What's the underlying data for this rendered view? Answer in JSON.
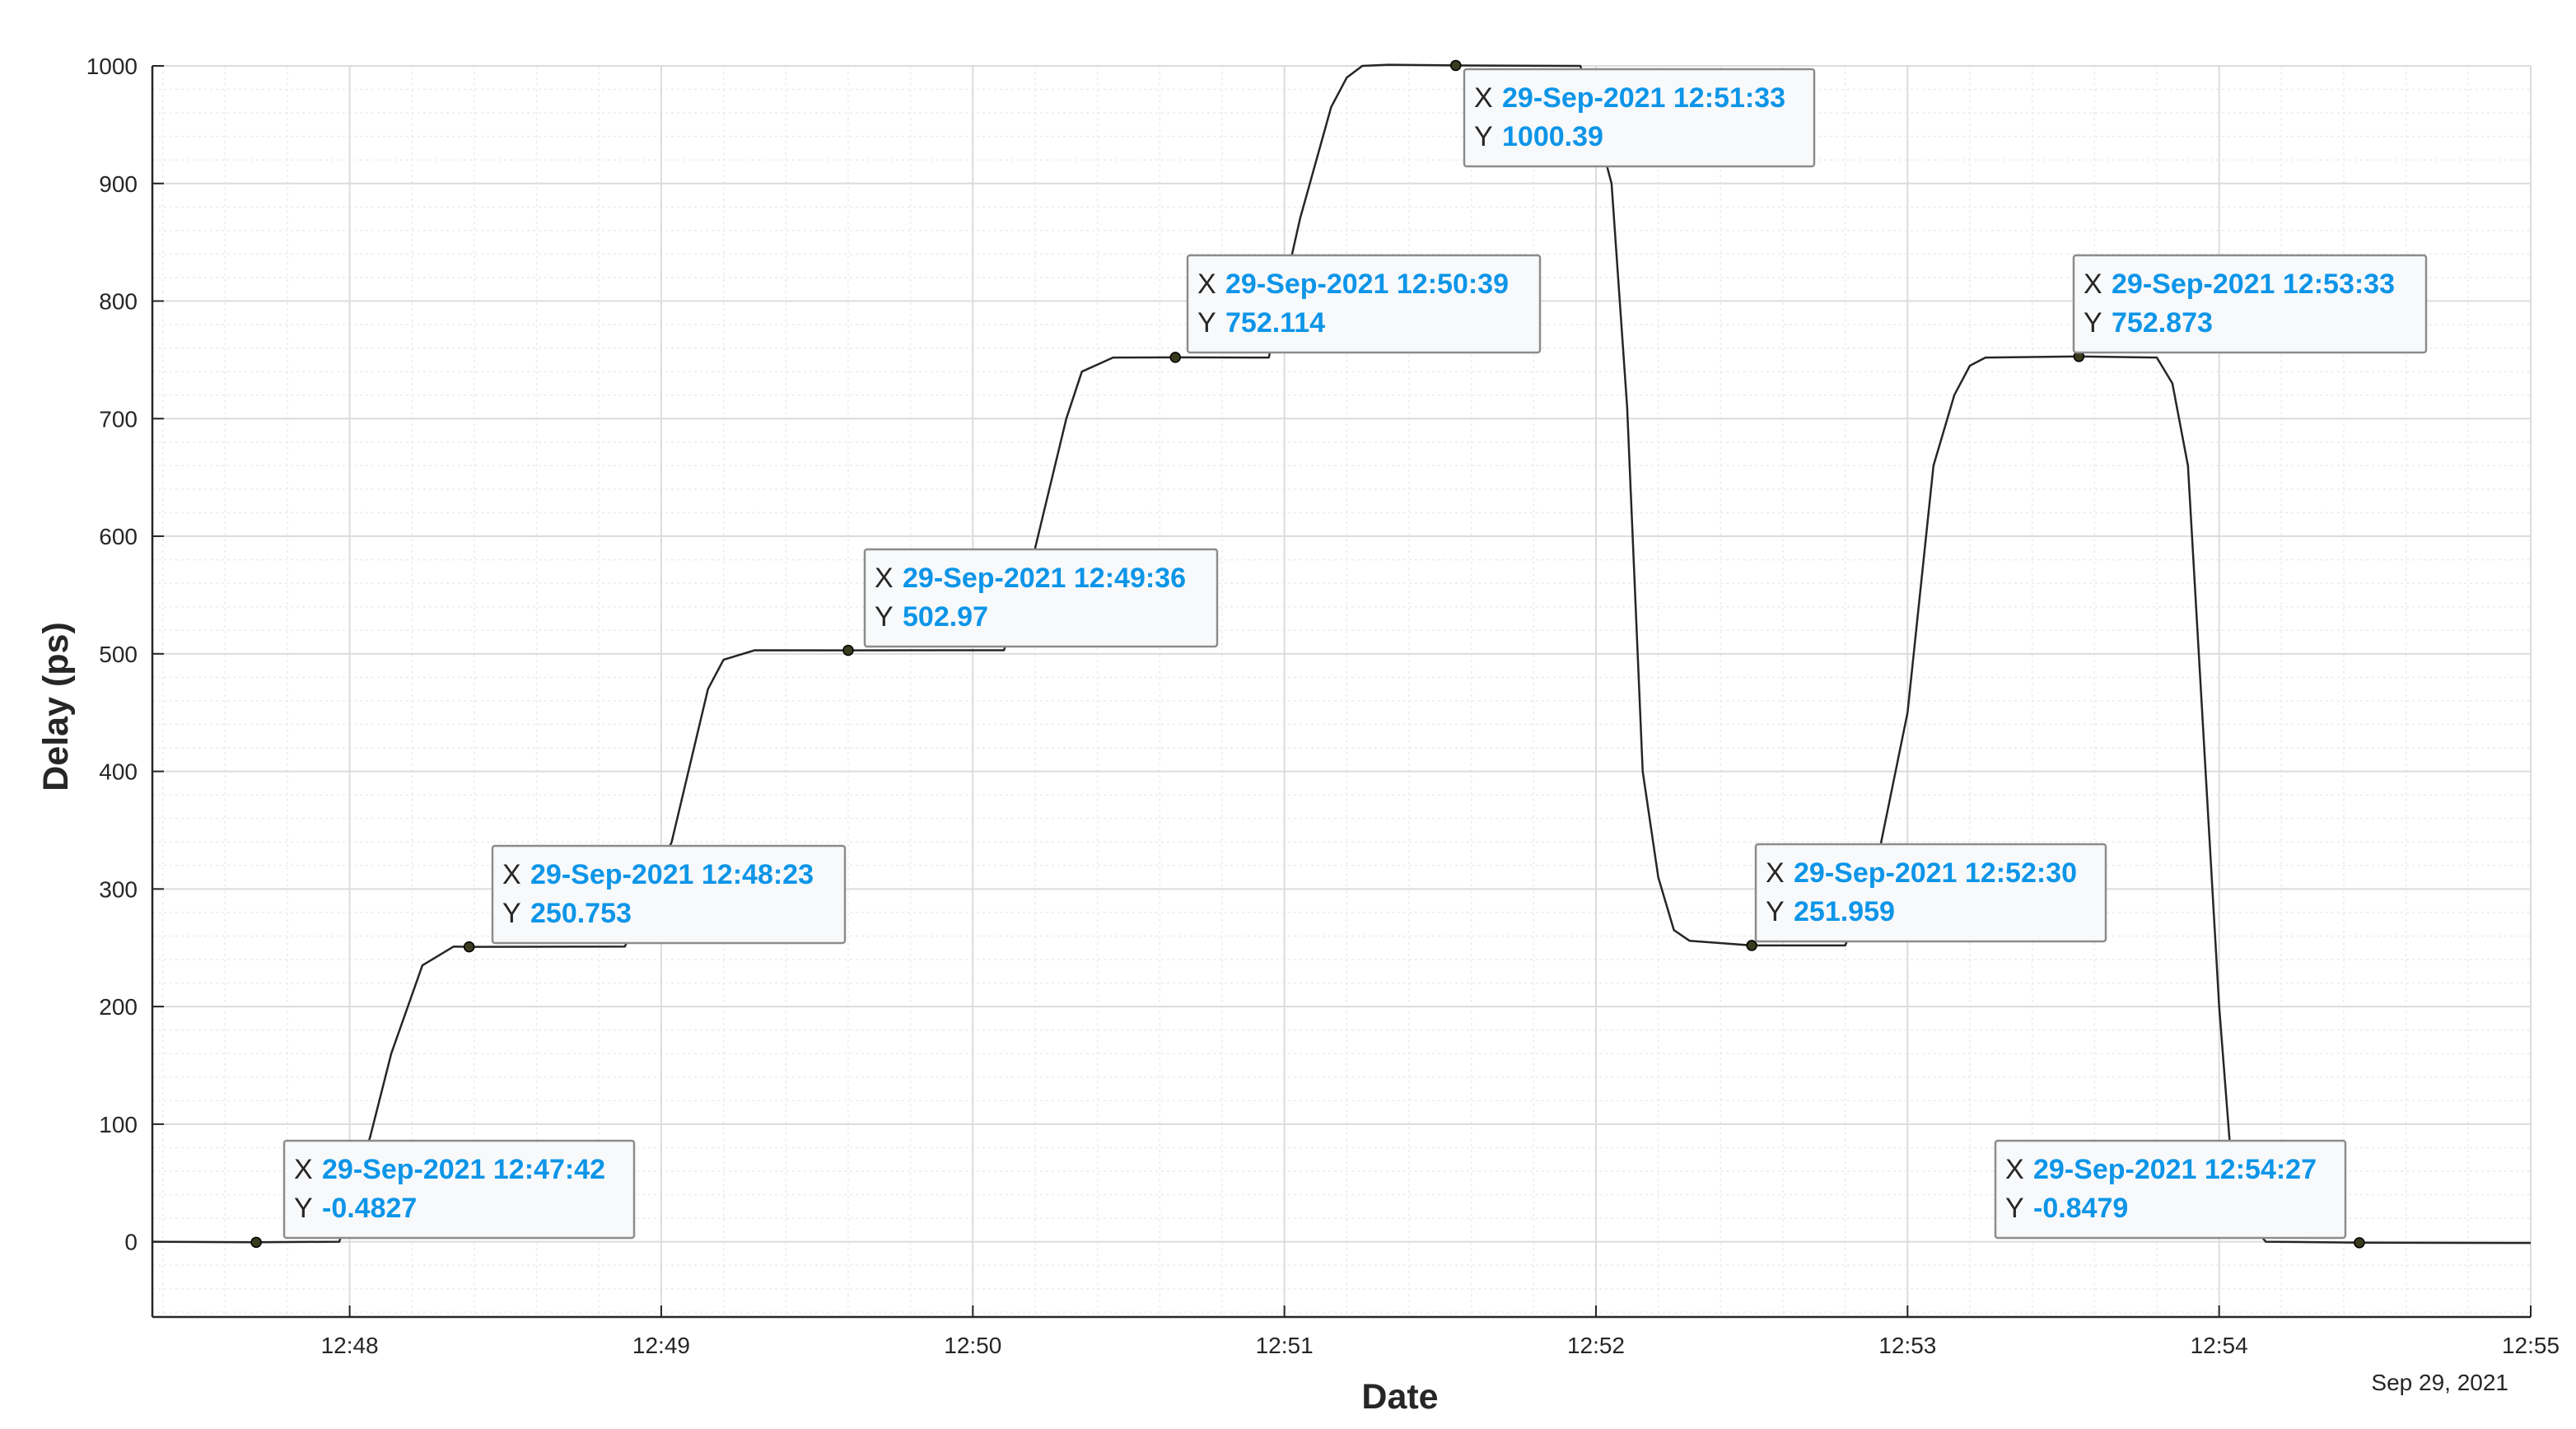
{
  "chart_data": {
    "type": "line",
    "title": "",
    "xlabel": "Date",
    "ylabel": "Delay (ps)",
    "x_date_label": "Sep 29, 2021",
    "xlim": [
      "12:47:22",
      "12:55:00"
    ],
    "ylim": [
      -64,
      1000
    ],
    "yticks": [
      0,
      100,
      200,
      300,
      400,
      500,
      600,
      700,
      800,
      900,
      1000
    ],
    "xticks": [
      {
        "t": "12:48:00",
        "label": "12:48"
      },
      {
        "t": "12:49:00",
        "label": "12:49"
      },
      {
        "t": "12:50:00",
        "label": "12:50"
      },
      {
        "t": "12:51:00",
        "label": "12:51"
      },
      {
        "t": "12:52:00",
        "label": "12:52"
      },
      {
        "t": "12:53:00",
        "label": "12:53"
      },
      {
        "t": "12:54:00",
        "label": "12:54"
      },
      {
        "t": "12:55:00",
        "label": "12:55"
      }
    ],
    "grid": true,
    "minor_grid": true,
    "series": [
      {
        "color": "#262626",
        "x": [
          "12:47:22",
          "12:47:42",
          "12:47:58",
          "12:48:04",
          "12:48:08",
          "12:48:14",
          "12:48:20",
          "12:48:23",
          "12:48:53",
          "12:49:02",
          "12:49:09",
          "12:49:12",
          "12:49:18",
          "12:49:36",
          "12:50:06",
          "12:50:12",
          "12:50:18",
          "12:50:21",
          "12:50:27",
          "12:50:39",
          "12:50:57",
          "12:51:03",
          "12:51:09",
          "12:51:12",
          "12:51:15",
          "12:51:20",
          "12:51:33",
          "12:51:57",
          "12:52:03",
          "12:52:06",
          "12:52:09",
          "12:52:12",
          "12:52:15",
          "12:52:18",
          "12:52:30",
          "12:52:48",
          "12:52:54",
          "12:53:00",
          "12:53:05",
          "12:53:09",
          "12:53:12",
          "12:53:15",
          "12:53:33",
          "12:53:48",
          "12:53:51",
          "12:53:54",
          "12:54:00",
          "12:54:03",
          "12:54:09",
          "12:54:27",
          "12:55:00"
        ],
        "y": [
          0,
          -0.4827,
          0,
          90,
          160,
          235,
          251,
          250.753,
          251,
          340,
          470,
          495,
          503,
          502.97,
          503,
          590,
          700,
          740,
          752,
          752.114,
          752,
          870,
          965,
          990,
          1000,
          1001,
          1000.39,
          1000,
          900,
          710,
          400,
          310,
          265,
          256,
          251.959,
          252,
          320,
          450,
          660,
          720,
          745,
          752,
          752.873,
          752,
          730,
          660,
          200,
          30,
          0,
          -0.8479,
          -1
        ]
      }
    ],
    "datatips": [
      {
        "x_label": "X",
        "y_label": "Y",
        "x": "29-Sep-2021 12:47:42",
        "y": "-0.4827",
        "t": "12:47:42",
        "v": -0.4827
      },
      {
        "x_label": "X",
        "y_label": "Y",
        "x": "29-Sep-2021 12:48:23",
        "y": "250.753",
        "t": "12:48:23",
        "v": 250.753
      },
      {
        "x_label": "X",
        "y_label": "Y",
        "x": "29-Sep-2021 12:49:36",
        "y": "502.97",
        "t": "12:49:36",
        "v": 502.97
      },
      {
        "x_label": "X",
        "y_label": "Y",
        "x": "29-Sep-2021 12:50:39",
        "y": "752.114",
        "t": "12:50:39",
        "v": 752.114
      },
      {
        "x_label": "X",
        "y_label": "Y",
        "x": "29-Sep-2021 12:51:33",
        "y": "1000.39",
        "t": "12:51:33",
        "v": 1000.39
      },
      {
        "x_label": "X",
        "y_label": "Y",
        "x": "29-Sep-2021 12:52:30",
        "y": "251.959",
        "t": "12:52:30",
        "v": 251.959
      },
      {
        "x_label": "X",
        "y_label": "Y",
        "x": "29-Sep-2021 12:53:33",
        "y": "752.873",
        "t": "12:53:33",
        "v": 752.873
      },
      {
        "x_label": "X",
        "y_label": "Y",
        "x": "29-Sep-2021 12:54:27",
        "y": "-0.8479",
        "t": "12:54:27",
        "v": -0.8479
      }
    ],
    "colors": {
      "line": "#262626",
      "marker": "#3a3a1e",
      "axis": "#262626",
      "grid_major": "#dcdcdc",
      "grid_minor": "#ececec",
      "tip_value": "#0d95e8",
      "tip_border": "#8c8c8c",
      "tip_fill": "#f8f9fb"
    }
  }
}
